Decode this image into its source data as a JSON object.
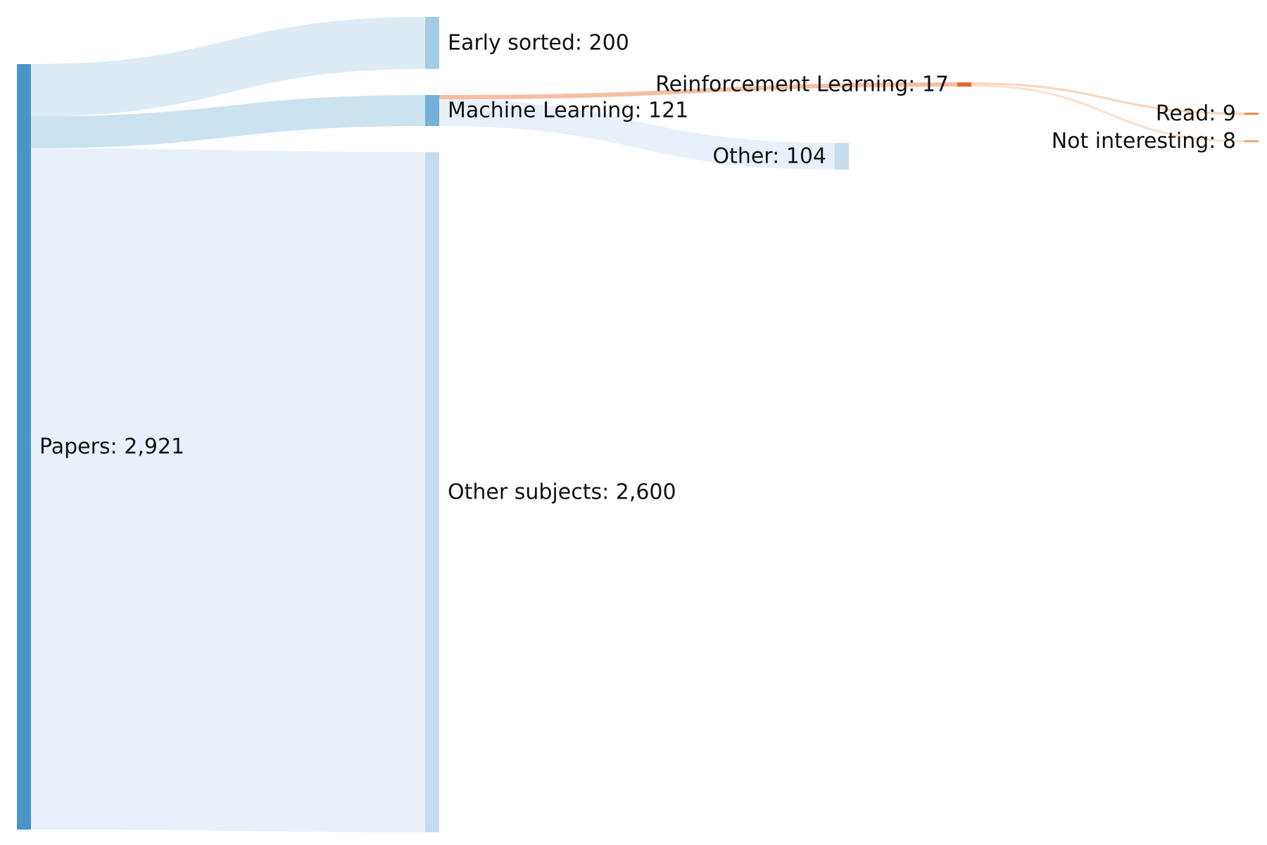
{
  "chart_data": {
    "type": "sankey",
    "nodes": [
      {
        "id": "papers",
        "label": "Papers: 2,921",
        "value": 2921,
        "color": "#4a94c8"
      },
      {
        "id": "early",
        "label": "Early sorted: 200",
        "value": 200,
        "color": "#a3cce4"
      },
      {
        "id": "ml",
        "label": "Machine Learning: 121",
        "value": 121,
        "color": "#74b0d9"
      },
      {
        "id": "other_subjects",
        "label": "Other subjects: 2,600",
        "value": 2600,
        "color": "#c8dcef"
      },
      {
        "id": "rl",
        "label": "Reinforcement Learning: 17",
        "value": 17,
        "color": "#e0692e"
      },
      {
        "id": "other",
        "label": "Other: 104",
        "value": 104,
        "color": "#c8dcef"
      },
      {
        "id": "read",
        "label": "Read: 9",
        "value": 9,
        "color": "#f08a4b"
      },
      {
        "id": "not_interesting",
        "label": "Not interesting: 8",
        "value": 8,
        "color": "#f4a86f"
      }
    ],
    "links": [
      {
        "source": "papers",
        "target": "early",
        "value": 200,
        "color": "#d9e9f3"
      },
      {
        "source": "papers",
        "target": "ml",
        "value": 121,
        "color": "#c5dff0"
      },
      {
        "source": "papers",
        "target": "other_subjects",
        "value": 2600,
        "color": "#e6eff8"
      },
      {
        "source": "ml",
        "target": "rl",
        "value": 17,
        "color": "#f4b89a"
      },
      {
        "source": "ml",
        "target": "other",
        "value": 104,
        "color": "#e6eff8"
      },
      {
        "source": "rl",
        "target": "read",
        "value": 9,
        "color": "#f9cfb3"
      },
      {
        "source": "rl",
        "target": "not_interesting",
        "value": 8,
        "color": "#fbdcc6"
      }
    ]
  }
}
